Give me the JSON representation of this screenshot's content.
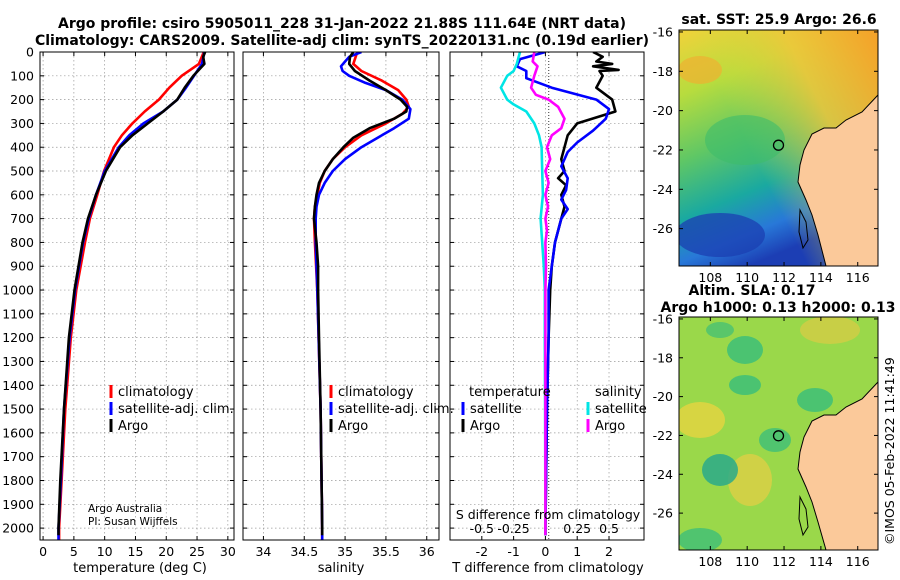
{
  "figure": {
    "title_line1": "Argo profile: csiro 5905011_228 31-Jan-2022 21.88S 111.64E (NRT data)",
    "title_line2": "Climatology: CARS2009. Satellite-adj clim: synTS_20220131.nc (0.19d earlier)",
    "credit_line1": "Argo Australia",
    "credit_line2": "PI: Susan Wijffels",
    "timestamp": "©IMOS 05-Feb-2022 11:41:49"
  },
  "colors": {
    "climatology": "#ff0000",
    "satellite_adj": "#0000ff",
    "argo": "#000000",
    "satellite": "#00e5e5",
    "salinity_argo": "#ff00ff"
  },
  "chart_data": [
    {
      "id": "temperature",
      "type": "line",
      "xlabel": "temperature (deg C)",
      "ylabel": "",
      "xlim": [
        -0.5,
        31
      ],
      "xticks": [
        0,
        5,
        10,
        15,
        20,
        25,
        30
      ],
      "xtick_labels": [
        "0",
        "5",
        "10",
        "15",
        "20",
        "25",
        "30"
      ],
      "ylim": [
        0,
        2050
      ],
      "yticks": [
        0,
        100,
        200,
        300,
        400,
        500,
        600,
        700,
        800,
        900,
        1000,
        1100,
        1200,
        1300,
        1400,
        1500,
        1600,
        1700,
        1800,
        1900,
        2000
      ],
      "ytick_labels": [
        "0",
        "100",
        "200",
        "300",
        "400",
        "500",
        "600",
        "700",
        "800",
        "900",
        "1000",
        "1100",
        "1200",
        "1300",
        "1400",
        "1500",
        "1600",
        "1700",
        "1800",
        "1900",
        "2000"
      ],
      "grid": true,
      "legend": [
        "climatology",
        "satellite-adj. clim.",
        "Argo"
      ],
      "series": [
        {
          "name": "climatology",
          "color": "#ff0000",
          "depth": [
            0,
            50,
            100,
            150,
            200,
            250,
            300,
            350,
            400,
            500,
            600,
            700,
            800,
            1000,
            1200,
            1500,
            1800,
            2000,
            2050
          ],
          "values": [
            26.1,
            25.3,
            22.5,
            20.5,
            18.8,
            16.5,
            14.5,
            12.8,
            11.5,
            9.9,
            8.8,
            7.6,
            6.8,
            5.4,
            4.5,
            3.6,
            3.0,
            2.6,
            2.6
          ]
        },
        {
          "name": "satellite-adj. clim.",
          "color": "#0000ff",
          "depth": [
            0,
            50,
            100,
            150,
            200,
            250,
            300,
            350,
            400,
            500,
            600,
            700,
            800,
            1000,
            1200,
            1500,
            1800,
            2000,
            2050
          ],
          "values": [
            26.2,
            25.8,
            24.5,
            23.2,
            21.8,
            19.5,
            16.3,
            14.0,
            12.3,
            10.0,
            8.6,
            7.4,
            6.5,
            5.2,
            4.3,
            3.4,
            2.9,
            2.5,
            2.5
          ]
        },
        {
          "name": "Argo",
          "color": "#000000",
          "depth": [
            0,
            20,
            50,
            100,
            150,
            200,
            250,
            300,
            350,
            400,
            500,
            600,
            700,
            800,
            1000,
            1200,
            1500,
            1800,
            2000,
            2030
          ],
          "values": [
            26.3,
            26.0,
            26.2,
            24.4,
            23.0,
            21.8,
            19.5,
            17.0,
            14.5,
            12.5,
            10.2,
            8.6,
            7.3,
            6.4,
            5.1,
            4.2,
            3.4,
            2.8,
            2.5,
            2.5
          ]
        }
      ]
    },
    {
      "id": "salinity",
      "type": "line",
      "xlabel": "salinity",
      "ylabel": "",
      "xlim": [
        33.75,
        36.15
      ],
      "xticks": [
        34,
        34.5,
        35,
        35.5,
        36
      ],
      "xtick_labels": [
        "34",
        "34.5",
        "35",
        "35.5",
        "36"
      ],
      "ylim": [
        0,
        2050
      ],
      "grid": true,
      "legend": [
        "climatology",
        "satellite-adj. clim.",
        "Argo"
      ],
      "series": [
        {
          "name": "climatology",
          "color": "#ff0000",
          "depth": [
            0,
            50,
            80,
            120,
            160,
            200,
            230,
            260,
            300,
            350,
            400,
            450,
            500,
            550,
            600,
            650,
            700,
            800,
            1000,
            1500,
            2000,
            2050
          ],
          "values": [
            35.15,
            35.1,
            35.2,
            35.45,
            35.65,
            35.75,
            35.78,
            35.7,
            35.5,
            35.2,
            35.0,
            34.85,
            34.75,
            34.69,
            34.66,
            34.63,
            34.62,
            34.63,
            34.66,
            34.7,
            34.72,
            34.72
          ]
        },
        {
          "name": "satellite-adj. clim.",
          "color": "#0000ff",
          "depth": [
            0,
            20,
            40,
            60,
            80,
            100,
            130,
            160,
            200,
            240,
            280,
            320,
            360,
            400,
            450,
            500,
            550,
            600,
            650,
            700,
            800,
            1000,
            1500,
            2000,
            2050
          ],
          "values": [
            35.2,
            35.05,
            35.0,
            34.95,
            34.97,
            35.05,
            35.25,
            35.5,
            35.7,
            35.8,
            35.78,
            35.6,
            35.4,
            35.2,
            35.0,
            34.85,
            34.75,
            34.68,
            34.65,
            34.64,
            34.64,
            34.66,
            34.7,
            34.72,
            34.72
          ]
        },
        {
          "name": "Argo",
          "color": "#000000",
          "depth": [
            0,
            20,
            50,
            80,
            120,
            160,
            200,
            230,
            250,
            280,
            320,
            360,
            400,
            450,
            500,
            550,
            600,
            650,
            700,
            800,
            900,
            1000,
            1200,
            1500,
            2000,
            2030
          ],
          "values": [
            35.1,
            35.06,
            35.05,
            35.12,
            35.3,
            35.5,
            35.68,
            35.76,
            35.75,
            35.6,
            35.3,
            35.1,
            34.98,
            34.85,
            34.75,
            34.68,
            34.65,
            34.63,
            34.62,
            34.65,
            34.67,
            34.67,
            34.68,
            34.7,
            34.72,
            34.72
          ]
        }
      ]
    },
    {
      "id": "differences",
      "type": "line",
      "xlabel": "T difference from climatology",
      "x2label": "S difference from climatology",
      "ylabel": "",
      "xlim": [
        -3,
        3.1
      ],
      "xticks": [
        -2,
        -1,
        0,
        1,
        2
      ],
      "xtick_labels": [
        "-2",
        "-1",
        "0",
        "1",
        "2"
      ],
      "x2ticks": [
        -2,
        -1,
        1,
        2
      ],
      "x2tick_labels": [
        "-0.5",
        "-0.25",
        "0.25",
        "0.5"
      ],
      "ylim": [
        0,
        2050
      ],
      "grid": true,
      "legend_temperature_title": "temperature",
      "legend_salinity_title": "salinity",
      "legend_temperature": [
        "satellite",
        "Argo"
      ],
      "legend_salinity": [
        "satellite",
        "Argo"
      ],
      "series": [
        {
          "name": "temperature Argo",
          "color": "#000000",
          "depth": [
            0,
            20,
            40,
            50,
            60,
            75,
            80,
            100,
            150,
            200,
            250,
            300,
            350,
            400,
            450,
            500,
            530,
            560,
            600,
            650,
            700,
            800,
            900,
            1000,
            1200,
            1500,
            2000,
            2030
          ],
          "values": [
            1.5,
            1.8,
            1.6,
            2.1,
            1.5,
            2.3,
            1.7,
            1.8,
            1.6,
            2.1,
            2.2,
            1.0,
            0.7,
            0.6,
            0.5,
            0.6,
            0.4,
            0.65,
            0.5,
            0.6,
            0.5,
            0.3,
            0.2,
            0.15,
            0.1,
            0.05,
            0.0,
            0.0
          ]
        },
        {
          "name": "temperature satellite",
          "color": "#0000ff",
          "depth": [
            0,
            30,
            60,
            80,
            110,
            150,
            200,
            240,
            280,
            330,
            380,
            420,
            480,
            530,
            580,
            620,
            660,
            700,
            800,
            900,
            1000,
            1200,
            1500,
            2000,
            2030
          ],
          "values": [
            0.0,
            -0.8,
            -0.9,
            -0.6,
            -0.6,
            0.2,
            1.6,
            2.0,
            1.9,
            1.5,
            1.0,
            0.7,
            0.5,
            0.7,
            0.65,
            0.5,
            0.7,
            0.5,
            0.3,
            0.2,
            0.1,
            0.1,
            0.05,
            0.0,
            0.0
          ]
        },
        {
          "name": "salinity satellite",
          "color": "#00e5e5",
          "depth": [
            0,
            50,
            80,
            100,
            150,
            200,
            220,
            250,
            300,
            350,
            400,
            500,
            600,
            700,
            800,
            900,
            1000,
            1200,
            1500,
            2000,
            2030
          ],
          "values": [
            -0.8,
            -0.9,
            -1.0,
            -1.2,
            -1.4,
            -1.2,
            -1.0,
            -0.6,
            -0.35,
            -0.2,
            -0.12,
            -0.1,
            -0.08,
            -0.15,
            -0.1,
            -0.05,
            -0.02,
            -0.02,
            -0.01,
            0.0,
            0.0
          ]
        },
        {
          "name": "salinity Argo",
          "color": "#ff00ff",
          "depth": [
            0,
            40,
            60,
            100,
            150,
            180,
            200,
            230,
            280,
            320,
            350,
            400,
            450,
            500,
            550,
            600,
            650,
            700,
            750,
            800,
            900,
            1000,
            1200,
            1500,
            2000,
            2030
          ],
          "values": [
            -0.35,
            -0.4,
            -0.25,
            -0.35,
            -0.45,
            -0.3,
            0.1,
            0.4,
            0.6,
            0.5,
            0.2,
            0.05,
            0.15,
            0.0,
            0.1,
            0.0,
            0.08,
            0.0,
            0.05,
            0.0,
            0.02,
            0.0,
            0.0,
            0.0,
            0.0,
            0.0
          ]
        }
      ]
    },
    {
      "id": "sst_map",
      "type": "heatmap",
      "title": "sat. SST: 25.9 Argo: 26.6",
      "xlim": [
        106.3,
        117.1
      ],
      "ylim": [
        -27.9,
        -15.9
      ],
      "xticks": [
        108,
        110,
        112,
        114,
        116
      ],
      "xtick_labels": [
        "108",
        "110",
        "112",
        "114",
        "116"
      ],
      "yticks": [
        -16,
        -18,
        -20,
        -22,
        -24,
        -26
      ],
      "ytick_labels": [
        "-16",
        "-18",
        "-20",
        "-22",
        "-24",
        "-26"
      ],
      "float_position": [
        111.64,
        -21.88
      ]
    },
    {
      "id": "sla_map",
      "type": "heatmap",
      "title_line1": "Altim. SLA: 0.17",
      "title_line2": "Argo h1000: 0.13 h2000: 0.13",
      "xlim": [
        106.3,
        117.1
      ],
      "ylim": [
        -27.9,
        -15.9
      ],
      "xticks": [
        108,
        110,
        112,
        114,
        116
      ],
      "xtick_labels": [
        "108",
        "110",
        "112",
        "114",
        "116"
      ],
      "yticks": [
        -16,
        -18,
        -20,
        -22,
        -24,
        -26
      ],
      "ytick_labels": [
        "-16",
        "-18",
        "-20",
        "-22",
        "-24",
        "-26"
      ],
      "float_position": [
        111.64,
        -21.88
      ]
    }
  ]
}
